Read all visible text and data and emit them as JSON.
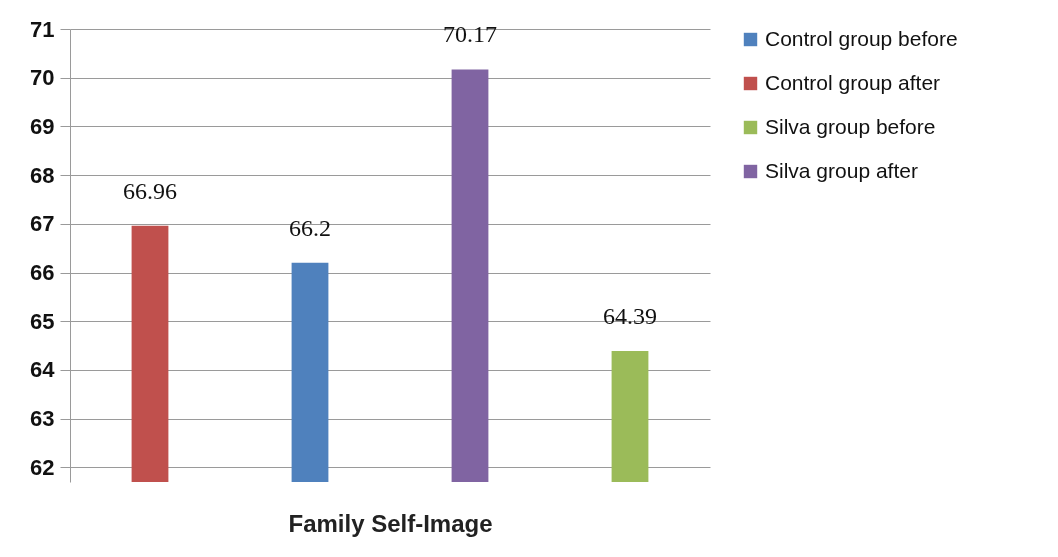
{
  "chart_data": {
    "type": "bar",
    "xlabel": "Family Self-Image",
    "categories": [
      null,
      null,
      null,
      null
    ],
    "series": [
      {
        "name": "Control group before",
        "color": "#4f81bd",
        "values": [
          null,
          66.2,
          null,
          null
        ]
      },
      {
        "name": "Control group after",
        "color": "#c0504d",
        "values": [
          66.96,
          null,
          null,
          null
        ]
      },
      {
        "name": "Silva group before",
        "color": "#9bbb59",
        "values": [
          null,
          null,
          null,
          64.39
        ]
      },
      {
        "name": "Silva group after",
        "color": "#8064a2",
        "values": [
          null,
          null,
          70.17,
          null
        ]
      }
    ],
    "ylim": [
      61.7,
      71
    ],
    "yticks": [
      62,
      63,
      64,
      65,
      66,
      67,
      68,
      69,
      70,
      71
    ],
    "grid": "y",
    "legend": "right",
    "data_labels": true
  }
}
